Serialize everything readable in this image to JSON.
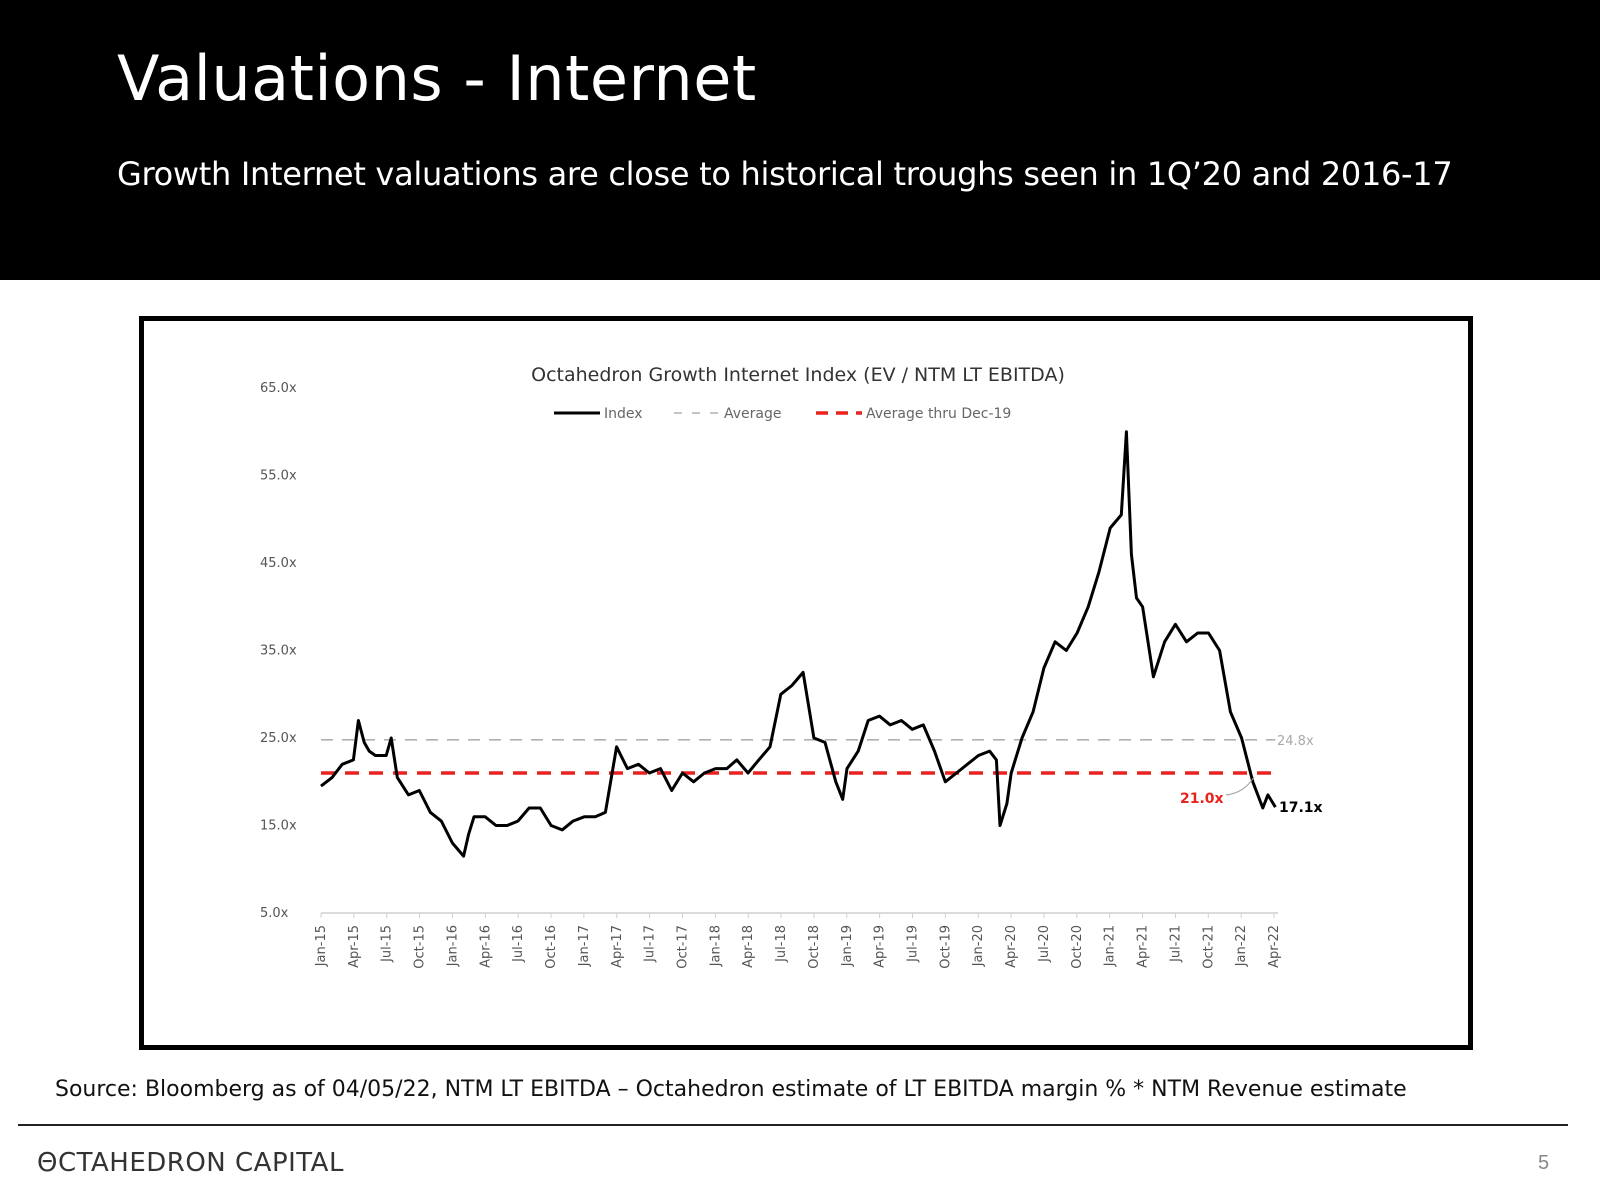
{
  "slide": {
    "title": "Valuations - Internet",
    "subtitle": "Growth Internet valuations are close to historical troughs seen in 1Q’20 and 2016-17",
    "source": "Source: Bloomberg as of 04/05/22, NTM LT EBITDA – Octahedron estimate of LT EBITDA margin % * NTM Revenue estimate",
    "brand": "ΘCTAHEDRON CAPITAL",
    "page_number": "5"
  },
  "colors": {
    "index": "#000000",
    "average": "#b0b0b0",
    "average_thru_dec19": "#e8231f",
    "header_bg": "#000000"
  },
  "chart_data": {
    "type": "line",
    "title": "Octahedron Growth Internet Index (EV / NTM LT EBITDA)",
    "xlabel": "",
    "ylabel": "",
    "ylim": [
      5,
      65
    ],
    "yticks": [
      "5.0x",
      "15.0x",
      "25.0x",
      "35.0x",
      "45.0x",
      "55.0x",
      "65.0x"
    ],
    "ytick_values": [
      5,
      15,
      25,
      35,
      45,
      55,
      65
    ],
    "xticks": [
      "Jan-15",
      "Apr-15",
      "Jul-15",
      "Oct-15",
      "Jan-16",
      "Apr-16",
      "Jul-16",
      "Oct-16",
      "Jan-17",
      "Apr-17",
      "Jul-17",
      "Oct-17",
      "Jan-18",
      "Apr-18",
      "Jul-18",
      "Oct-18",
      "Jan-19",
      "Apr-19",
      "Jul-19",
      "Oct-19",
      "Jan-20",
      "Apr-20",
      "Jul-20",
      "Oct-20",
      "Jan-21",
      "Apr-21",
      "Jul-21",
      "Oct-21",
      "Jan-22",
      "Apr-22"
    ],
    "legend": {
      "position": "top",
      "entries": [
        "Index",
        "Average",
        "Average thru Dec-19"
      ]
    },
    "grid": false,
    "series": [
      {
        "name": "Index",
        "style": "solid",
        "x": [
          "2015-01-01",
          "2015-02-01",
          "2015-03-01",
          "2015-04-01",
          "2015-04-15",
          "2015-05-01",
          "2015-05-15",
          "2015-06-01",
          "2015-07-01",
          "2015-07-15",
          "2015-08-01",
          "2015-09-01",
          "2015-10-01",
          "2015-11-01",
          "2015-12-01",
          "2016-01-01",
          "2016-02-01",
          "2016-02-15",
          "2016-03-01",
          "2016-04-01",
          "2016-05-01",
          "2016-06-01",
          "2016-07-01",
          "2016-08-01",
          "2016-09-01",
          "2016-10-01",
          "2016-11-01",
          "2016-12-01",
          "2017-01-01",
          "2017-02-01",
          "2017-03-01",
          "2017-04-01",
          "2017-05-01",
          "2017-06-01",
          "2017-07-01",
          "2017-08-01",
          "2017-09-01",
          "2017-10-01",
          "2017-11-01",
          "2017-12-01",
          "2018-01-01",
          "2018-02-01",
          "2018-03-01",
          "2018-04-01",
          "2018-05-01",
          "2018-06-01",
          "2018-07-01",
          "2018-08-01",
          "2018-09-01",
          "2018-10-01",
          "2018-11-01",
          "2018-12-01",
          "2018-12-20",
          "2019-01-01",
          "2019-02-01",
          "2019-03-01",
          "2019-04-01",
          "2019-05-01",
          "2019-06-01",
          "2019-07-01",
          "2019-08-01",
          "2019-09-01",
          "2019-10-01",
          "2019-11-01",
          "2019-12-01",
          "2020-01-01",
          "2020-02-01",
          "2020-02-20",
          "2020-03-01",
          "2020-03-20",
          "2020-04-01",
          "2020-05-01",
          "2020-06-01",
          "2020-07-01",
          "2020-08-01",
          "2020-09-01",
          "2020-10-01",
          "2020-11-01",
          "2020-12-01",
          "2021-01-01",
          "2021-02-01",
          "2021-02-15",
          "2021-03-01",
          "2021-03-15",
          "2021-04-01",
          "2021-05-01",
          "2021-06-01",
          "2021-07-01",
          "2021-08-01",
          "2021-09-01",
          "2021-10-01",
          "2021-11-01",
          "2021-12-01",
          "2022-01-01",
          "2022-02-01",
          "2022-03-01",
          "2022-03-15",
          "2022-04-05"
        ],
        "values": [
          19.5,
          20.5,
          22,
          22.5,
          27,
          24.5,
          23.5,
          23,
          23,
          25,
          20.5,
          18.5,
          19,
          16.5,
          15.5,
          13,
          11.5,
          14,
          16,
          16,
          15,
          15,
          15.5,
          17,
          17,
          15,
          14.5,
          15.5,
          16,
          16,
          16.5,
          24,
          21.5,
          22,
          21,
          21.5,
          19,
          21,
          20,
          21,
          21.5,
          21.5,
          22.5,
          21,
          22.5,
          24,
          30,
          31,
          32.5,
          25,
          24.5,
          20,
          18,
          21.5,
          23.5,
          27,
          27.5,
          26.5,
          27,
          26,
          26.5,
          23.5,
          20,
          21,
          22,
          23,
          23.5,
          22.5,
          15,
          17.5,
          21,
          25,
          28,
          33,
          36,
          35,
          37,
          40,
          44,
          49,
          50.5,
          60,
          46,
          41,
          40,
          32,
          36,
          38,
          36,
          37,
          37,
          35,
          28,
          25,
          20,
          17,
          18.5,
          17.1
        ]
      },
      {
        "name": "Average",
        "style": "dashed",
        "x": [
          "2015-01-01",
          "2022-04-05"
        ],
        "values": [
          24.8,
          24.8
        ],
        "label": "24.8x"
      },
      {
        "name": "Average thru Dec-19",
        "style": "dashed",
        "x": [
          "2015-01-01",
          "2022-04-05"
        ],
        "values": [
          21.0,
          21.0
        ],
        "label": "21.0x"
      }
    ],
    "annotations": [
      "24.8x",
      "21.0x",
      "17.1x"
    ]
  }
}
